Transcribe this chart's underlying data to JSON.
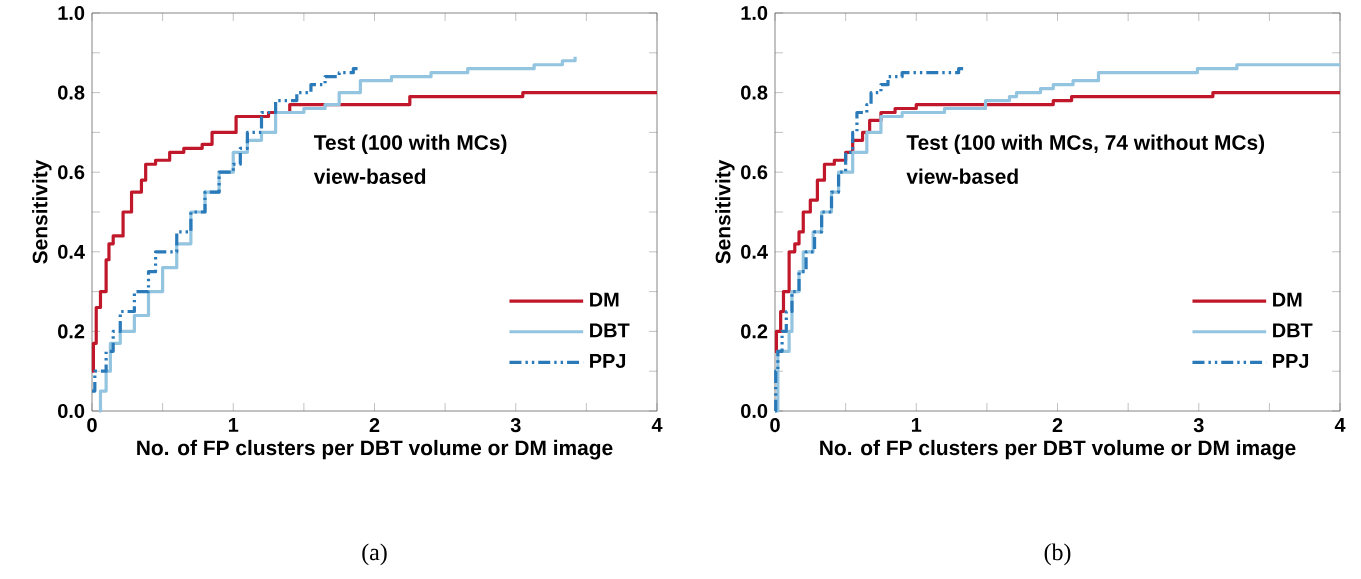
{
  "chart_data": [
    {
      "type": "step",
      "xlabel": "No. of FP clusters per DBT volume or DM image",
      "ylabel": "Sensitivity",
      "annotations": [
        "Test (100 with MCs)",
        "view-based",
        "(a)"
      ],
      "xlim": [
        0,
        4
      ],
      "ylim": [
        0,
        1
      ],
      "xticks": [
        0,
        {
          "value": 0.5,
          "label": null
        },
        1,
        {
          "value": 1.5,
          "label": null
        },
        2,
        {
          "value": 2.5,
          "label": null
        },
        3,
        {
          "value": 3.5,
          "label": null
        },
        4
      ],
      "yticks": [
        {
          "value": 0,
          "label": "0.0"
        },
        {
          "value": 0.1,
          "label": null
        },
        {
          "value": 0.2,
          "label": "0.2"
        },
        {
          "value": 0.3,
          "label": null
        },
        {
          "value": 0.4,
          "label": "0.4"
        },
        {
          "value": 0.5,
          "label": null
        },
        {
          "value": 0.6,
          "label": "0.6"
        },
        {
          "value": 0.7,
          "label": null
        },
        {
          "value": 0.8,
          "label": "0.8"
        },
        {
          "value": 0.9,
          "label": null
        },
        {
          "value": 1,
          "label": "1.0"
        }
      ],
      "legend": "bottom right",
      "grid": false,
      "series": [
        {
          "name": "DM",
          "color": "#c0182a",
          "line_style": "solid",
          "x": [
            0,
            0.01,
            0.03,
            0.06,
            0.1,
            0.12,
            0.15,
            0.22,
            0.28,
            0.35,
            0.38,
            0.45,
            0.55,
            0.65,
            0.78,
            0.85,
            0.9,
            1.02,
            1.25,
            1.4,
            1.44,
            2.25,
            3.05,
            4
          ],
          "values": [
            0.1,
            0.17,
            0.26,
            0.3,
            0.38,
            0.42,
            0.44,
            0.5,
            0.55,
            0.58,
            0.62,
            0.63,
            0.65,
            0.66,
            0.67,
            0.7,
            0.7,
            0.74,
            0.75,
            0.77,
            0.77,
            0.79,
            0.8,
            0.8
          ]
        },
        {
          "name": "DBT",
          "color": "#93c4e0",
          "line_style": "solid",
          "x": [
            0.05,
            0.06,
            0.1,
            0.13,
            0.2,
            0.3,
            0.4,
            0.5,
            0.6,
            0.7,
            0.8,
            0.9,
            1.0,
            1.1,
            1.2,
            1.3,
            1.5,
            1.65,
            1.75,
            1.9,
            2.12,
            2.4,
            2.66,
            3.13,
            3.33,
            3.42
          ],
          "values": [
            0,
            0.05,
            0.1,
            0.17,
            0.2,
            0.24,
            0.3,
            0.36,
            0.42,
            0.5,
            0.55,
            0.6,
            0.65,
            0.68,
            0.7,
            0.75,
            0.76,
            0.77,
            0.8,
            0.83,
            0.84,
            0.85,
            0.86,
            0.87,
            0.88,
            0.89
          ]
        },
        {
          "name": "PPJ",
          "color": "#2a7ab9",
          "line_style": "dashdotdotted",
          "x": [
            0,
            0.02,
            0.1,
            0.15,
            0.2,
            0.3,
            0.4,
            0.45,
            0.6,
            0.7,
            0.8,
            0.9,
            1.0,
            1.05,
            1.1,
            1.2,
            1.3,
            1.45,
            1.55,
            1.65,
            1.75,
            1.85,
            1.88
          ],
          "values": [
            0.05,
            0.1,
            0.15,
            0.2,
            0.25,
            0.3,
            0.35,
            0.4,
            0.45,
            0.5,
            0.55,
            0.6,
            0.62,
            0.66,
            0.7,
            0.75,
            0.78,
            0.8,
            0.82,
            0.84,
            0.85,
            0.86,
            0.86
          ]
        }
      ]
    },
    {
      "type": "step",
      "xlabel": "No. of FP clusters per DBT volume or DM image",
      "ylabel": "Sensitivity",
      "annotations": [
        "Test (100 with MCs, 74 without MCs)",
        "view-based",
        "(b)"
      ],
      "xlim": [
        0,
        4
      ],
      "ylim": [
        0,
        1
      ],
      "xticks": [
        0,
        {
          "value": 0.5,
          "label": null
        },
        1,
        {
          "value": 1.5,
          "label": null
        },
        2,
        {
          "value": 2.5,
          "label": null
        },
        3,
        {
          "value": 3.5,
          "label": null
        },
        4
      ],
      "yticks": [
        {
          "value": 0,
          "label": "0.0"
        },
        {
          "value": 0.1,
          "label": null
        },
        {
          "value": 0.2,
          "label": "0.2"
        },
        {
          "value": 0.3,
          "label": null
        },
        {
          "value": 0.4,
          "label": "0.4"
        },
        {
          "value": 0.5,
          "label": null
        },
        {
          "value": 0.6,
          "label": "0.6"
        },
        {
          "value": 0.7,
          "label": null
        },
        {
          "value": 0.8,
          "label": "0.8"
        },
        {
          "value": 0.9,
          "label": null
        },
        {
          "value": 1,
          "label": "1.0"
        }
      ],
      "legend": "bottom right",
      "grid": false,
      "series": [
        {
          "name": "DM",
          "color": "#c0182a",
          "line_style": "solid",
          "x": [
            0,
            0.01,
            0.04,
            0.06,
            0.1,
            0.14,
            0.17,
            0.2,
            0.25,
            0.3,
            0.35,
            0.42,
            0.5,
            0.55,
            0.62,
            0.67,
            0.75,
            0.85,
            1.0,
            1.2,
            1.97,
            2.1,
            3.1,
            4
          ],
          "values": [
            0.15,
            0.2,
            0.25,
            0.3,
            0.4,
            0.42,
            0.45,
            0.5,
            0.53,
            0.58,
            0.62,
            0.63,
            0.65,
            0.68,
            0.7,
            0.73,
            0.75,
            0.76,
            0.77,
            0.77,
            0.78,
            0.79,
            0.8,
            0.8
          ]
        },
        {
          "name": "DBT",
          "color": "#93c4e0",
          "line_style": "solid",
          "x": [
            0,
            0.02,
            0.1,
            0.12,
            0.17,
            0.2,
            0.27,
            0.33,
            0.4,
            0.45,
            0.55,
            0.65,
            0.75,
            0.9,
            1.2,
            1.49,
            1.66,
            1.71,
            1.88,
            1.97,
            2.11,
            2.29,
            2.99,
            3.27,
            4
          ],
          "values": [
            0,
            0.15,
            0.2,
            0.3,
            0.35,
            0.4,
            0.45,
            0.5,
            0.55,
            0.6,
            0.65,
            0.7,
            0.74,
            0.75,
            0.76,
            0.78,
            0.79,
            0.8,
            0.81,
            0.82,
            0.83,
            0.85,
            0.86,
            0.87,
            0.87
          ]
        },
        {
          "name": "PPJ",
          "color": "#2a7ab9",
          "line_style": "dashdotdotted",
          "x": [
            0,
            0.005,
            0.02,
            0.05,
            0.08,
            0.12,
            0.17,
            0.22,
            0.28,
            0.33,
            0.4,
            0.45,
            0.5,
            0.55,
            0.58,
            0.65,
            0.68,
            0.75,
            0.8,
            0.9,
            1.3,
            1.35
          ],
          "values": [
            0,
            0.1,
            0.15,
            0.2,
            0.25,
            0.3,
            0.35,
            0.4,
            0.45,
            0.5,
            0.55,
            0.6,
            0.65,
            0.7,
            0.75,
            0.77,
            0.8,
            0.82,
            0.84,
            0.85,
            0.86,
            0.86
          ]
        }
      ]
    }
  ]
}
